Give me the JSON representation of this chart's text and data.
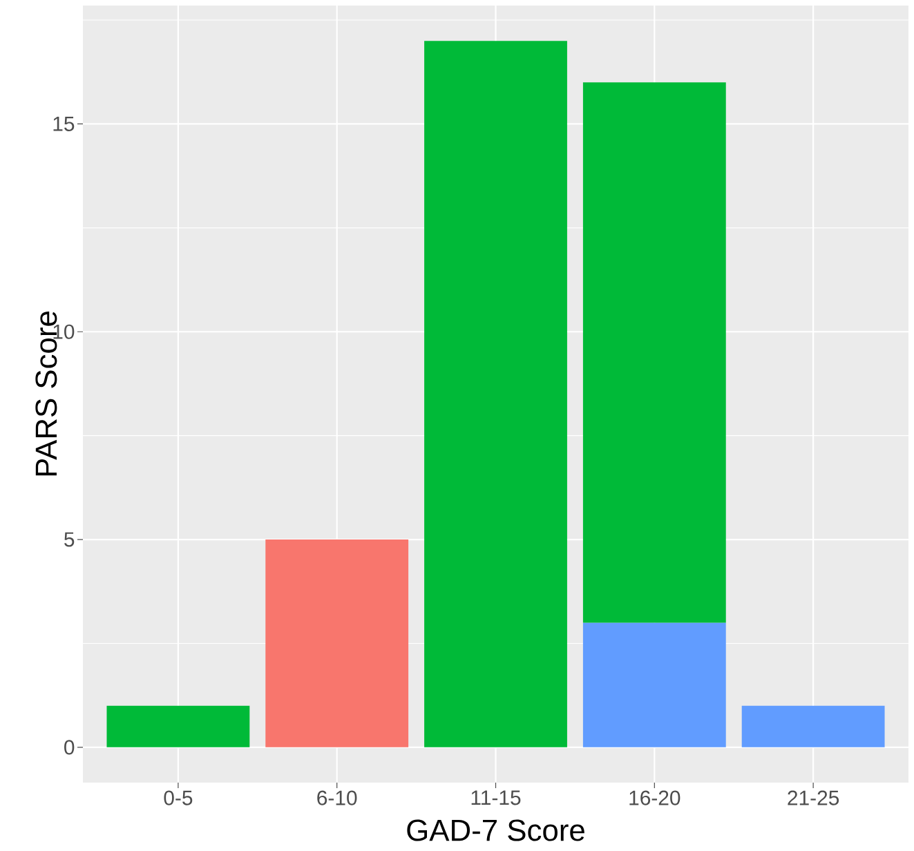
{
  "chart_data": {
    "type": "bar",
    "stacked": true,
    "xlabel": "GAD-7 Score",
    "ylabel": "PARS Score",
    "categories": [
      "0-5",
      "6-10",
      "11-15",
      "16-20",
      "21-25"
    ],
    "series": [
      {
        "color": "#619cff",
        "values": [
          null,
          null,
          null,
          3,
          1
        ]
      },
      {
        "color": "#00ba38",
        "values": [
          1,
          null,
          17,
          13,
          null
        ]
      },
      {
        "color": "#f8766d",
        "values": [
          null,
          5,
          null,
          null,
          null
        ]
      }
    ],
    "ylim": [
      -0.85,
      17.85
    ],
    "yticks": [
      0,
      5,
      10,
      15
    ],
    "grid": true
  }
}
